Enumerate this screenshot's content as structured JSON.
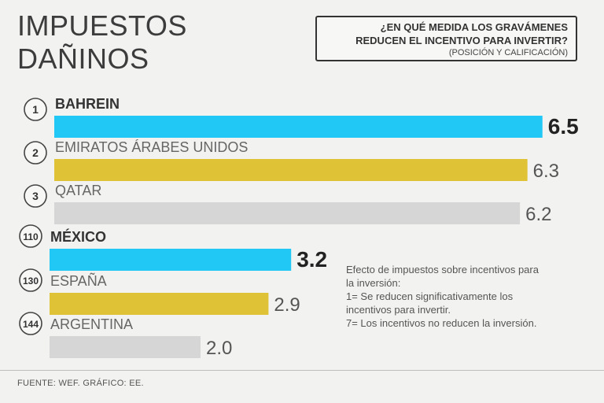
{
  "title": {
    "line1": "IMPUESTOS",
    "line2": "DAÑINOS"
  },
  "question": {
    "line1": "¿EN QUÉ MEDIDA LOS GRAVÁMENES",
    "line2": "REDUCEN EL INCENTIVO PARA INVERTIR?",
    "subtitle": "(POSICIÓN Y CALIFICACIÓN)"
  },
  "chart_data": {
    "type": "bar",
    "orientation": "horizontal",
    "categories": [
      "BAHREIN",
      "EMIRATOS ÁRABES UNIDOS",
      "QATAR",
      "MÉXICO",
      "ESPAÑA",
      "ARGENTINA"
    ],
    "ranks": [
      "1",
      "2",
      "3",
      "110",
      "130",
      "144"
    ],
    "values": [
      6.5,
      6.3,
      6.2,
      3.2,
      2.9,
      2.0
    ],
    "value_labels": [
      "6.5",
      "6.3",
      "6.2",
      "3.2",
      "2.9",
      "2.0"
    ],
    "highlight": [
      true,
      false,
      false,
      true,
      false,
      false
    ],
    "bar_colors": [
      "#22c8f5",
      "#dfc236",
      "#d6d6d6",
      "#22c8f5",
      "#dfc236",
      "#d6d6d6"
    ],
    "xlim": [
      0,
      7
    ],
    "title": "IMPUESTOS DAÑINOS",
    "xlabel": "",
    "ylabel": ""
  },
  "note": {
    "lines": [
      "Efecto de impuestos sobre incentivos para",
      "la inversión:",
      "1= Se reducen significativamente los",
      "incentivos para invertir.",
      "7= Los incentivos no reducen la inversión."
    ]
  },
  "source": "FUENTE: WEF. GRÁFICO: EE."
}
